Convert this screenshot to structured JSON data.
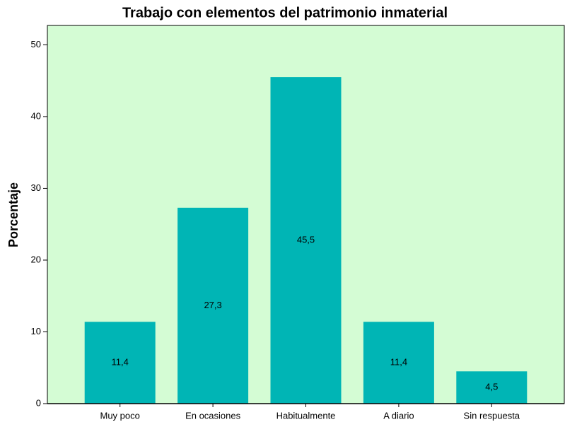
{
  "chart_data": {
    "type": "bar",
    "title": "Trabajo con elementos del patrimonio inmaterial",
    "y_label": "Porcentaje",
    "categories": [
      "Muy poco",
      "En ocasiones",
      "Habitualmente",
      "A diario",
      "Sin respuesta"
    ],
    "values": [
      11.4,
      27.3,
      45.5,
      11.4,
      4.5
    ],
    "value_labels": [
      "11,4",
      "27,3",
      "45,5",
      "11,4",
      "4,5"
    ],
    "color": "#00b5b5",
    "background": "#d4fcd4",
    "ylim": [
      0,
      52.7
    ],
    "yticks": [
      0,
      10,
      20,
      30,
      40,
      50
    ]
  }
}
